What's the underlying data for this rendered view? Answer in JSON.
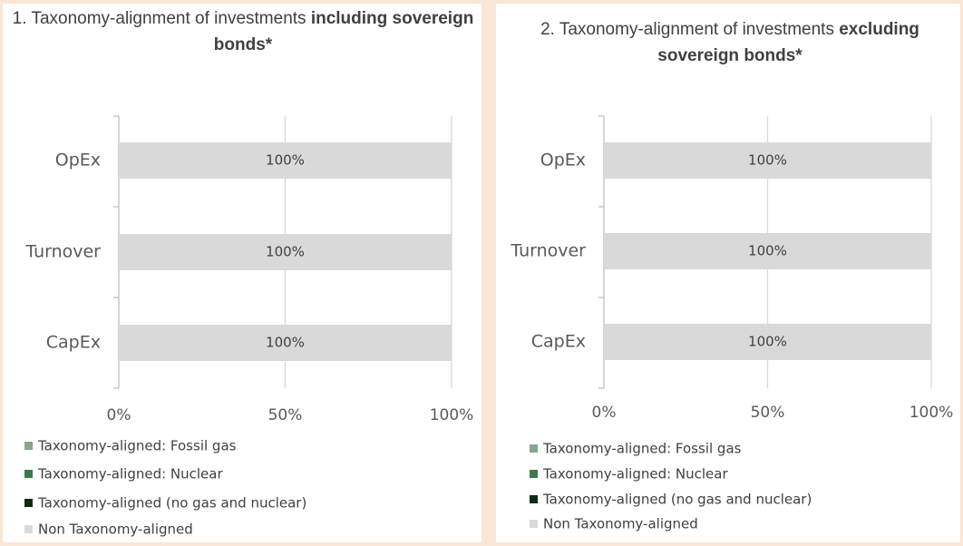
{
  "chart_data": [
    {
      "type": "stacked-barh",
      "title": [
        {
          "text": "1. Taxonomy-alignment of investments ",
          "bold": false
        },
        {
          "text": "including sovereign bonds*",
          "bold": true
        }
      ],
      "categories": [
        "OpEx",
        "Turnover",
        "CapEx"
      ],
      "series": [
        {
          "name": "Taxonomy-aligned: Fossil gas",
          "color": "#87a68d",
          "values": [
            0,
            0,
            0
          ]
        },
        {
          "name": "Taxonomy-aligned: Nuclear",
          "color": "#3b7a4b",
          "values": [
            0,
            0,
            0
          ]
        },
        {
          "name": "Taxonomy-aligned (no gas and nuclear)",
          "color": "#0e2a16",
          "values": [
            0,
            0,
            0
          ],
          "value_labels": [
            "%",
            "%",
            "%"
          ]
        },
        {
          "name": "Non Taxonomy-aligned",
          "color": "#d9d9d9",
          "values": [
            100,
            100,
            100
          ],
          "value_labels": [
            "100%",
            "100%",
            "100%"
          ]
        }
      ],
      "xlim": [
        0,
        100
      ],
      "xticks": [
        {
          "value": 0,
          "label": "0%"
        },
        {
          "value": 50,
          "label": "50%"
        },
        {
          "value": 100,
          "label": "100%"
        }
      ],
      "grid": true
    },
    {
      "type": "stacked-barh",
      "title": [
        {
          "text": "2. Taxonomy-alignment of investments ",
          "bold": false
        },
        {
          "text": "excluding sovereign bonds*",
          "bold": true
        }
      ],
      "categories": [
        "OpEx",
        "Turnover",
        "CapEx"
      ],
      "series": [
        {
          "name": "Taxonomy-aligned: Fossil gas",
          "color": "#87a68d",
          "values": [
            0,
            0,
            0
          ]
        },
        {
          "name": "Taxonomy-aligned: Nuclear",
          "color": "#3b7a4b",
          "values": [
            0,
            0,
            0
          ]
        },
        {
          "name": "Taxonomy-aligned (no gas and nuclear)",
          "color": "#0e2a16",
          "values": [
            0,
            0,
            0
          ],
          "value_labels": [
            "%",
            "%",
            "%"
          ]
        },
        {
          "name": "Non Taxonomy-aligned",
          "color": "#d9d9d9",
          "values": [
            100,
            100,
            100
          ],
          "value_labels": [
            "100%",
            "100%",
            "100%"
          ]
        }
      ],
      "xlim": [
        0,
        100
      ],
      "xticks": [
        {
          "value": 0,
          "label": "0%"
        },
        {
          "value": 50,
          "label": "50%"
        },
        {
          "value": 100,
          "label": "100%"
        }
      ],
      "grid": true
    }
  ]
}
